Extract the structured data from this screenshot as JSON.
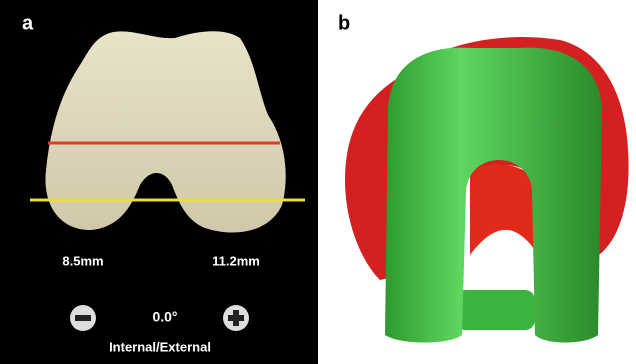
{
  "panel_a": {
    "label": "a",
    "left_measure": "8.5mm",
    "right_measure": "11.2mm",
    "angle": "0.0°",
    "control_label": "Internal/External"
  },
  "panel_b": {
    "label": "b"
  }
}
